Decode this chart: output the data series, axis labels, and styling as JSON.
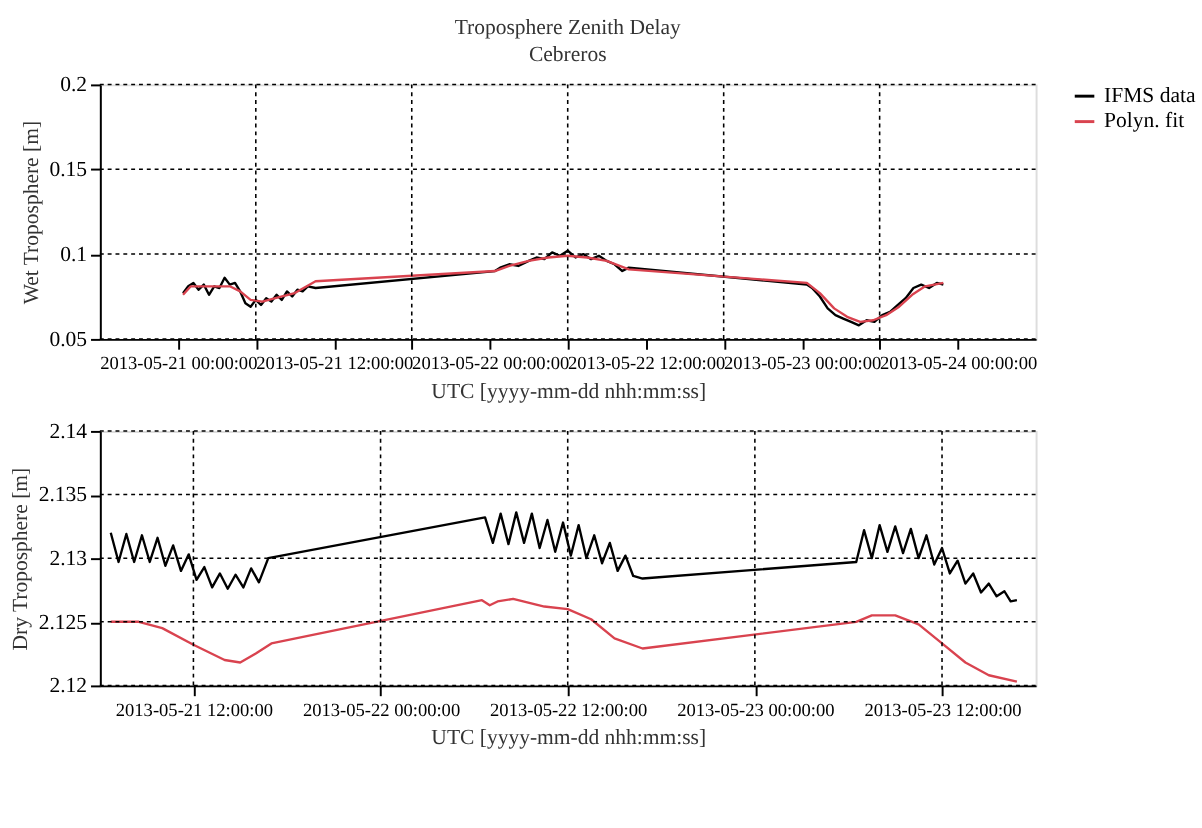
{
  "chart_data": [
    {
      "type": "line",
      "title": "Troposphere Zenith Delay",
      "subtitle": "Cebreros",
      "xlabel": "UTC [yyyy-mm-dd nhh:mm:ss]",
      "ylabel": "Wet Troposphere [m]",
      "xlim": [
        "2013-05-21T00:00",
        "2013-05-24T00:00"
      ],
      "xticks": [
        {
          "value": "2013-05-21T06:00",
          "label": "2013-05-21 00:00:00"
        },
        {
          "value": "2013-05-21T12:00",
          "label": null
        },
        {
          "value": "2013-05-21T18:00",
          "label": "2013-05-21 12:00:00"
        },
        {
          "value": "2013-05-22T00:00",
          "label": null
        },
        {
          "value": "2013-05-22T06:00",
          "label": "2013-05-22 00:00:00"
        },
        {
          "value": "2013-05-22T12:00",
          "label": null
        },
        {
          "value": "2013-05-22T18:00",
          "label": "2013-05-22 12:00:00"
        },
        {
          "value": "2013-05-23T00:00",
          "label": null
        },
        {
          "value": "2013-05-23T06:00",
          "label": "2013-05-23 00:00:00"
        },
        {
          "value": "2013-05-23T12:00",
          "label": null
        },
        {
          "value": "2013-05-23T18:00",
          "label": "2013-05-24 00:00:00"
        }
      ],
      "ylim": [
        0.05,
        0.2
      ],
      "yticks": [
        0.05,
        0.1,
        0.15,
        0.2
      ],
      "grid": true,
      "legend": "right",
      "line_style": "solid",
      "series": [
        {
          "name": "IFMS data",
          "color": "#000000",
          "x": [
            "2013-05-21T06:24",
            "2013-05-21T06:48",
            "2013-05-21T07:12",
            "2013-05-21T07:36",
            "2013-05-21T08:00",
            "2013-05-21T08:24",
            "2013-05-21T08:48",
            "2013-05-21T09:12",
            "2013-05-21T09:36",
            "2013-05-21T10:00",
            "2013-05-21T10:24",
            "2013-05-21T10:48",
            "2013-05-21T11:12",
            "2013-05-21T11:36",
            "2013-05-21T12:00",
            "2013-05-21T12:24",
            "2013-05-21T12:48",
            "2013-05-21T13:12",
            "2013-05-21T13:36",
            "2013-05-21T14:00",
            "2013-05-21T14:24",
            "2013-05-21T14:48",
            "2013-05-21T15:12",
            "2013-05-21T15:36",
            "2013-05-21T16:00",
            "2013-05-21T16:36",
            "2013-05-22T06:24",
            "2013-05-22T06:48",
            "2013-05-22T07:30",
            "2013-05-22T08:12",
            "2013-05-22T09:00",
            "2013-05-22T09:36",
            "2013-05-22T10:12",
            "2013-05-22T10:48",
            "2013-05-22T11:24",
            "2013-05-22T12:00",
            "2013-05-22T12:36",
            "2013-05-22T13:12",
            "2013-05-22T13:48",
            "2013-05-22T14:24",
            "2013-05-22T15:00",
            "2013-05-22T15:36",
            "2013-05-22T16:12",
            "2013-05-22T16:42",
            "2013-05-23T06:24",
            "2013-05-23T06:48",
            "2013-05-23T07:24",
            "2013-05-23T08:00",
            "2013-05-23T08:36",
            "2013-05-23T09:12",
            "2013-05-23T09:48",
            "2013-05-23T10:24",
            "2013-05-23T11:00",
            "2013-05-23T11:36",
            "2013-05-23T12:12",
            "2013-05-23T12:48",
            "2013-05-23T13:24",
            "2013-05-23T14:00",
            "2013-05-23T14:36",
            "2013-05-23T15:12",
            "2013-05-23T15:48",
            "2013-05-23T16:24",
            "2013-05-23T16:54"
          ],
          "values": [
            0.077,
            0.081,
            0.083,
            0.079,
            0.082,
            0.076,
            0.081,
            0.08,
            0.086,
            0.082,
            0.083,
            0.078,
            0.071,
            0.069,
            0.073,
            0.07,
            0.074,
            0.072,
            0.076,
            0.073,
            0.078,
            0.075,
            0.079,
            0.078,
            0.081,
            0.08,
            0.09,
            0.092,
            0.094,
            0.093,
            0.096,
            0.098,
            0.097,
            0.101,
            0.099,
            0.102,
            0.098,
            0.1,
            0.097,
            0.099,
            0.096,
            0.094,
            0.09,
            0.092,
            0.082,
            0.08,
            0.075,
            0.068,
            0.064,
            0.062,
            0.06,
            0.058,
            0.061,
            0.06,
            0.064,
            0.066,
            0.07,
            0.074,
            0.08,
            0.082,
            0.08,
            0.083,
            0.082
          ]
        },
        {
          "name": "Polyn. fit",
          "color": "#d9434f",
          "x": [
            "2013-05-21T06:24",
            "2013-05-21T07:00",
            "2013-05-21T08:00",
            "2013-05-21T09:00",
            "2013-05-21T10:00",
            "2013-05-21T10:48",
            "2013-05-21T11:36",
            "2013-05-21T12:30",
            "2013-05-21T13:30",
            "2013-05-21T15:00",
            "2013-05-21T16:36",
            "2013-05-22T06:24",
            "2013-05-22T07:30",
            "2013-05-22T09:00",
            "2013-05-22T10:30",
            "2013-05-22T12:00",
            "2013-05-22T13:30",
            "2013-05-22T15:00",
            "2013-05-22T16:42",
            "2013-05-23T06:24",
            "2013-05-23T07:24",
            "2013-05-23T08:30",
            "2013-05-23T09:30",
            "2013-05-23T10:30",
            "2013-05-23T11:30",
            "2013-05-23T12:30",
            "2013-05-23T13:30",
            "2013-05-23T14:30",
            "2013-05-23T15:30",
            "2013-05-23T16:54"
          ],
          "values": [
            0.076,
            0.081,
            0.081,
            0.081,
            0.081,
            0.078,
            0.073,
            0.072,
            0.074,
            0.077,
            0.084,
            0.09,
            0.093,
            0.096,
            0.098,
            0.099,
            0.098,
            0.096,
            0.091,
            0.083,
            0.077,
            0.068,
            0.063,
            0.06,
            0.061,
            0.064,
            0.069,
            0.076,
            0.081,
            0.083
          ]
        }
      ]
    },
    {
      "type": "line",
      "xlabel": "UTC [yyyy-mm-dd nhh:mm:ss]",
      "ylabel": "Dry Troposphere [m]",
      "xlim": [
        "2013-05-21T06:00",
        "2013-05-23T18:00"
      ],
      "xticks": [
        {
          "value": "2013-05-21T12:00",
          "label": "2013-05-21 12:00:00"
        },
        {
          "value": "2013-05-22T00:00",
          "label": "2013-05-22 00:00:00"
        },
        {
          "value": "2013-05-22T12:00",
          "label": "2013-05-22 12:00:00"
        },
        {
          "value": "2013-05-23T00:00",
          "label": "2013-05-23 00:00:00"
        },
        {
          "value": "2013-05-23T12:00",
          "label": "2013-05-23 12:00:00"
        }
      ],
      "ylim": [
        2.12,
        2.14
      ],
      "yticks": [
        2.12,
        2.125,
        2.13,
        2.135,
        2.14
      ],
      "grid": true,
      "legend": "right",
      "line_style": "solid",
      "series": [
        {
          "name": "IFMS data",
          "color": "#000000",
          "x": [
            "2013-05-21T06:42",
            "2013-05-21T07:12",
            "2013-05-21T07:42",
            "2013-05-21T08:12",
            "2013-05-21T08:42",
            "2013-05-21T09:12",
            "2013-05-21T09:42",
            "2013-05-21T10:12",
            "2013-05-21T10:42",
            "2013-05-21T11:12",
            "2013-05-21T11:42",
            "2013-05-21T12:12",
            "2013-05-21T12:42",
            "2013-05-21T13:12",
            "2013-05-21T13:42",
            "2013-05-21T14:12",
            "2013-05-21T14:42",
            "2013-05-21T15:12",
            "2013-05-21T15:42",
            "2013-05-21T16:12",
            "2013-05-21T16:48",
            "2013-05-22T06:42",
            "2013-05-22T07:12",
            "2013-05-22T07:42",
            "2013-05-22T08:12",
            "2013-05-22T08:42",
            "2013-05-22T09:12",
            "2013-05-22T09:42",
            "2013-05-22T10:12",
            "2013-05-22T10:42",
            "2013-05-22T11:12",
            "2013-05-22T11:42",
            "2013-05-22T12:12",
            "2013-05-22T12:42",
            "2013-05-22T13:12",
            "2013-05-22T13:42",
            "2013-05-22T14:12",
            "2013-05-22T14:42",
            "2013-05-22T15:12",
            "2013-05-22T15:42",
            "2013-05-22T16:12",
            "2013-05-22T16:48",
            "2013-05-23T06:30",
            "2013-05-23T07:00",
            "2013-05-23T07:30",
            "2013-05-23T08:00",
            "2013-05-23T08:30",
            "2013-05-23T09:00",
            "2013-05-23T09:30",
            "2013-05-23T10:00",
            "2013-05-23T10:30",
            "2013-05-23T11:00",
            "2013-05-23T11:30",
            "2013-05-23T12:00",
            "2013-05-23T12:30",
            "2013-05-23T13:00",
            "2013-05-23T13:30",
            "2013-05-23T14:00",
            "2013-05-23T14:30",
            "2013-05-23T15:00",
            "2013-05-23T15:30",
            "2013-05-23T16:00",
            "2013-05-23T16:24",
            "2013-05-23T16:48"
          ],
          "values": [
            2.132,
            2.1297,
            2.1319,
            2.1297,
            2.1318,
            2.1297,
            2.1316,
            2.1294,
            2.131,
            2.129,
            2.1303,
            2.1283,
            2.1293,
            2.1277,
            2.1288,
            2.1276,
            2.1287,
            2.1277,
            2.1292,
            2.1281,
            2.13,
            2.1332,
            2.1312,
            2.1335,
            2.1311,
            2.1336,
            2.1312,
            2.1335,
            2.1308,
            2.133,
            2.1305,
            2.1328,
            2.1302,
            2.1326,
            2.13,
            2.1318,
            2.1296,
            2.1312,
            2.129,
            2.1302,
            2.1286,
            2.1284,
            2.1297,
            2.1322,
            2.13,
            2.1326,
            2.1305,
            2.1325,
            2.1304,
            2.1323,
            2.13,
            2.1318,
            2.1295,
            2.1308,
            2.1288,
            2.1298,
            2.128,
            2.1288,
            2.1273,
            2.128,
            2.127,
            2.1274,
            2.1266,
            2.1267
          ]
        },
        {
          "name": "Polyn. fit",
          "color": "#d9434f",
          "x": [
            "2013-05-21T06:42",
            "2013-05-21T08:30",
            "2013-05-21T10:00",
            "2013-05-21T12:00",
            "2013-05-21T14:00",
            "2013-05-21T15:00",
            "2013-05-21T16:00",
            "2013-05-21T17:00",
            "2013-05-22T06:30",
            "2013-05-22T07:00",
            "2013-05-22T07:30",
            "2013-05-22T08:30",
            "2013-05-22T10:30",
            "2013-05-22T12:00",
            "2013-05-22T13:30",
            "2013-05-22T15:00",
            "2013-05-22T16:48",
            "2013-05-23T06:30",
            "2013-05-23T07:30",
            "2013-05-23T09:00",
            "2013-05-23T10:30",
            "2013-05-23T12:00",
            "2013-05-23T13:30",
            "2013-05-23T15:00",
            "2013-05-23T16:48"
          ],
          "values": [
            2.125,
            2.125,
            2.1245,
            2.1232,
            2.122,
            2.1218,
            2.1225,
            2.1233,
            2.1267,
            2.1263,
            2.1266,
            2.1268,
            2.1262,
            2.126,
            2.1252,
            2.1237,
            2.1229,
            2.125,
            2.1255,
            2.1255,
            2.1248,
            2.1233,
            2.1218,
            2.1208,
            2.1203
          ]
        }
      ]
    }
  ]
}
